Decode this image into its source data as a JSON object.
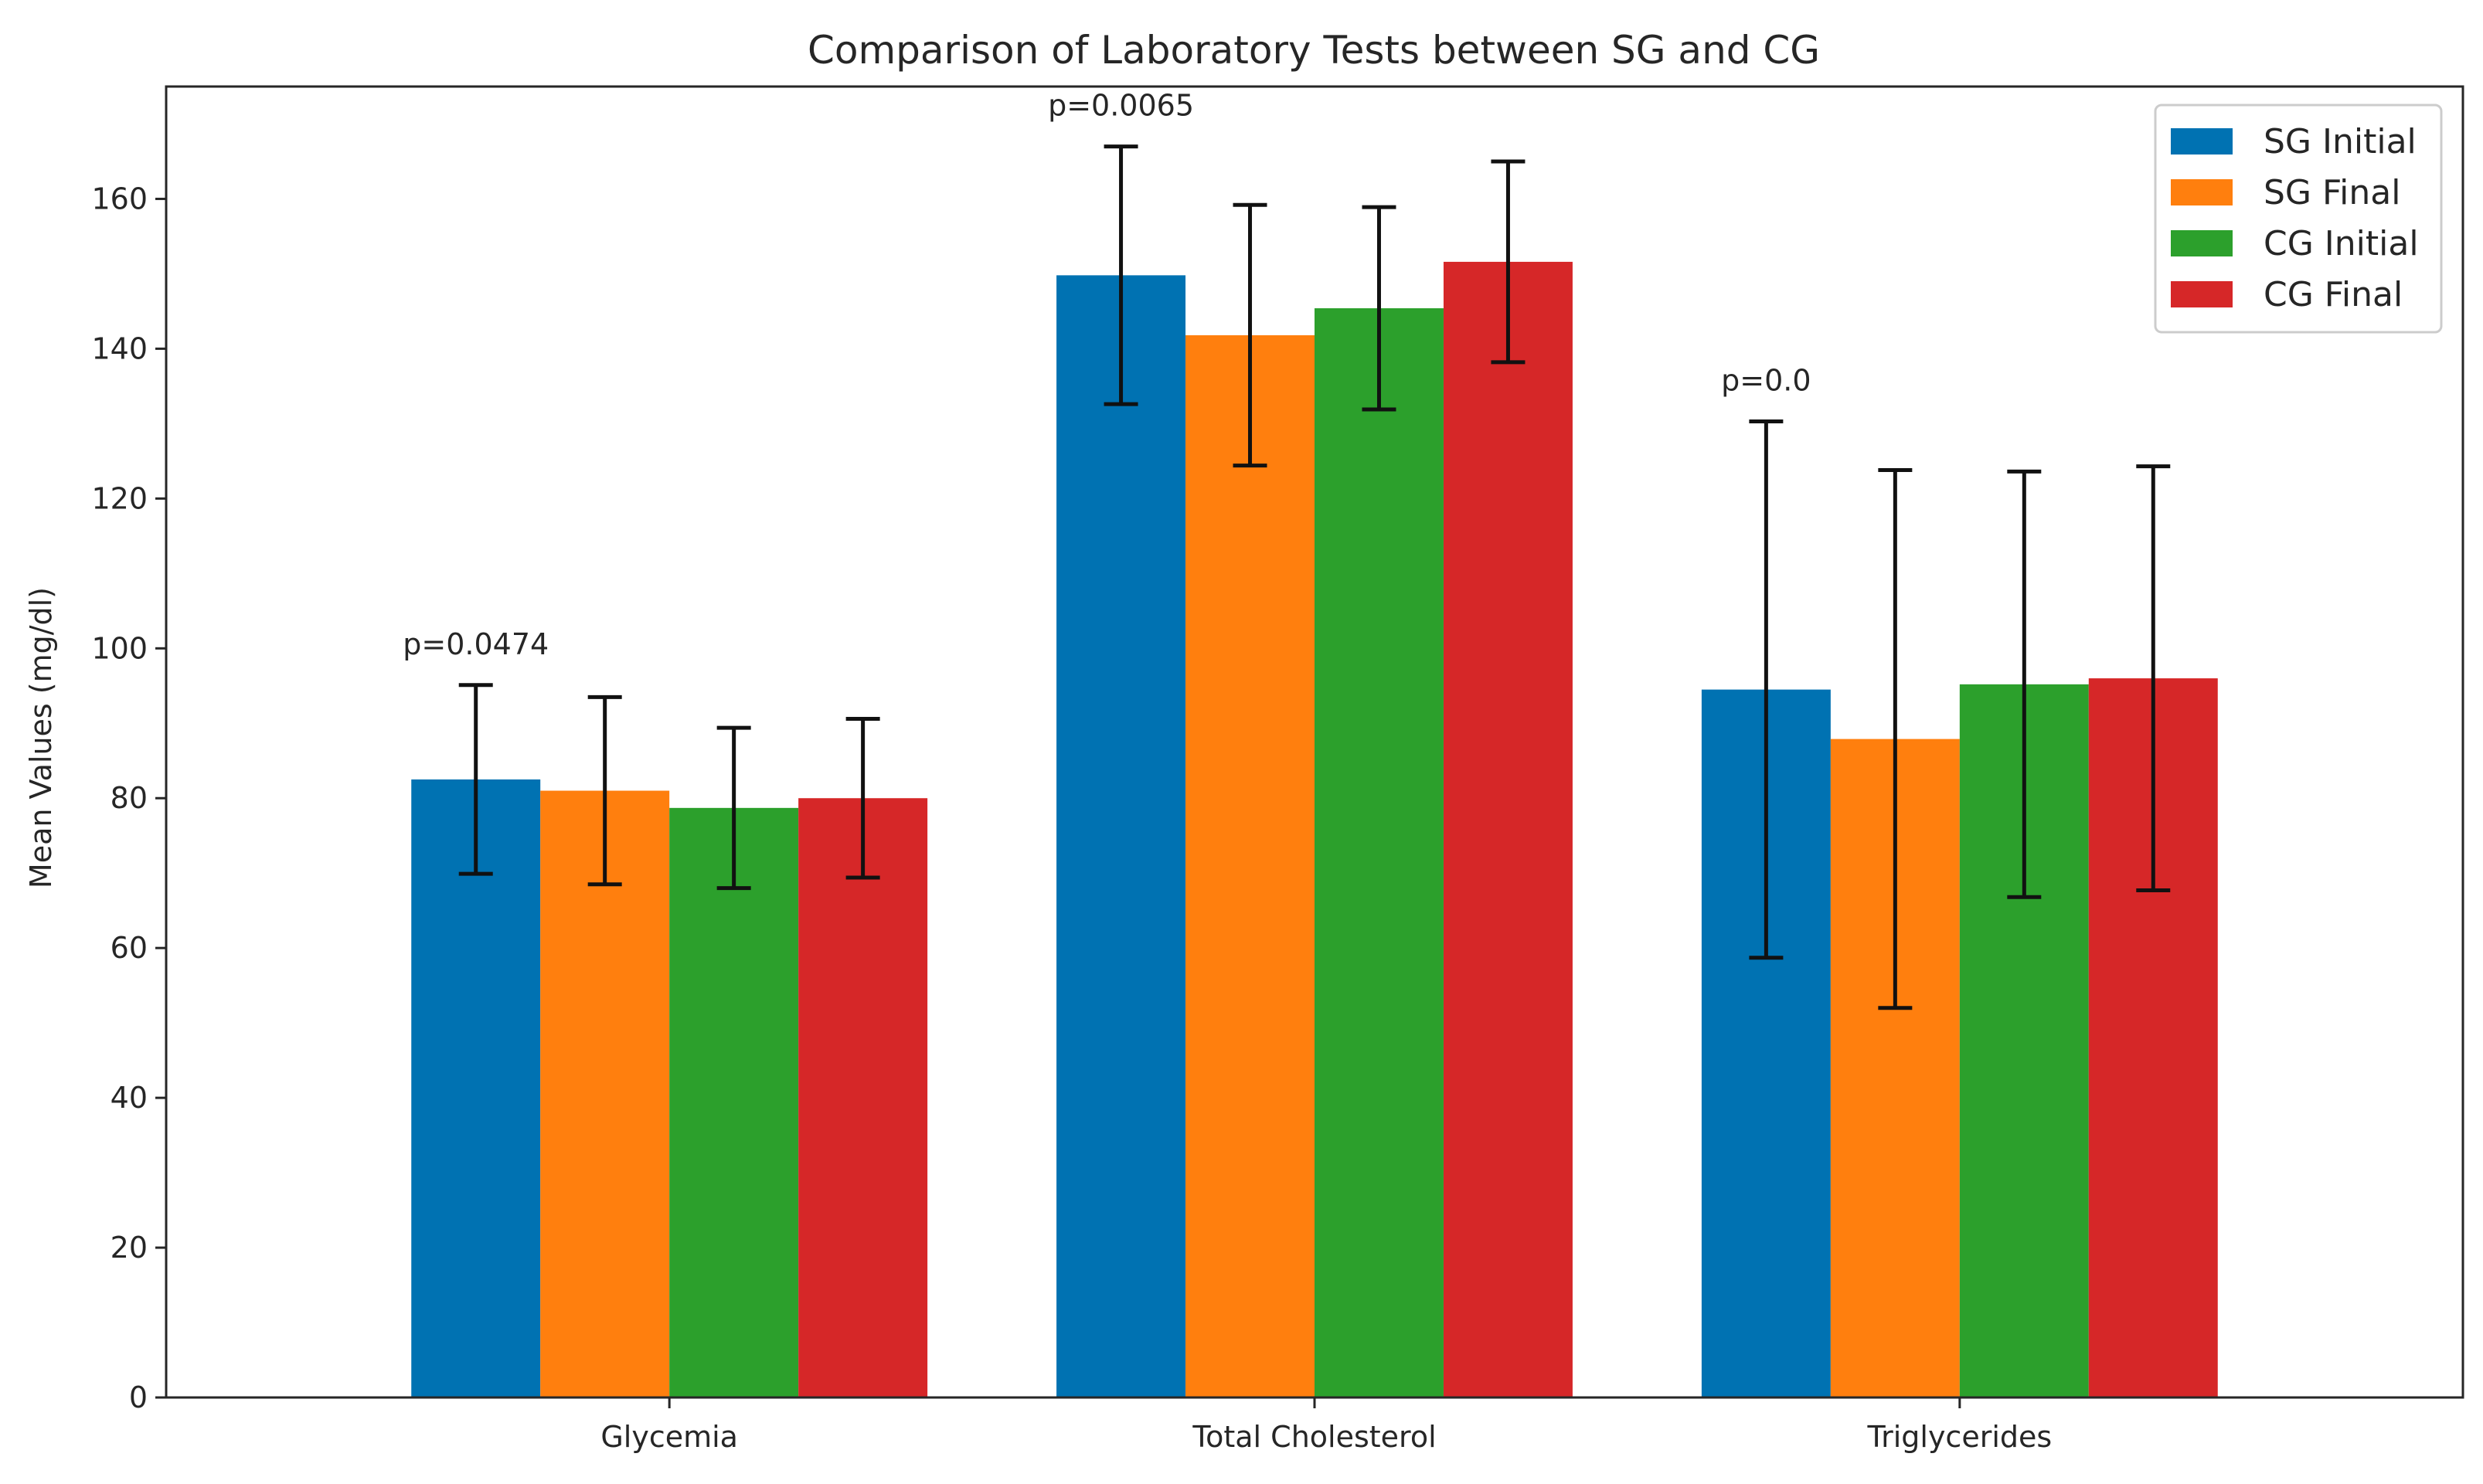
{
  "chart_data": {
    "type": "bar",
    "title": "Comparison of Laboratory Tests between SG and CG",
    "xlabel": "",
    "ylabel": "Mean Values (mg/dl)",
    "categories": [
      "Glycemia",
      "Total Cholesterol",
      "Triglycerides"
    ],
    "ylim": [
      0,
      175
    ],
    "yticks": [
      0,
      20,
      40,
      60,
      80,
      100,
      120,
      140,
      160
    ],
    "series": [
      {
        "name": "SG Initial",
        "color": "#0072b2",
        "values": [
          82.5,
          149.8,
          94.5
        ],
        "errors": [
          12.6,
          17.2,
          35.8
        ]
      },
      {
        "name": "SG Final",
        "color": "#ff7f0e",
        "values": [
          81.0,
          141.8,
          87.9
        ],
        "errors": [
          12.5,
          17.4,
          35.9
        ]
      },
      {
        "name": "CG Initial",
        "color": "#2ca02c",
        "values": [
          78.7,
          145.4,
          95.2
        ],
        "errors": [
          10.7,
          13.5,
          28.4
        ]
      },
      {
        "name": "CG Final",
        "color": "#d62728",
        "values": [
          80.0,
          151.6,
          96.0
        ],
        "errors": [
          10.6,
          13.4,
          28.3
        ]
      }
    ],
    "annotations": [
      {
        "text": "p=0.0474",
        "category": "Glycemia"
      },
      {
        "text": "p=0.0065",
        "category": "Total Cholesterol"
      },
      {
        "text": "p=0.0",
        "category": "Triglycerides"
      }
    ],
    "legend": "top-right",
    "grid": false
  }
}
